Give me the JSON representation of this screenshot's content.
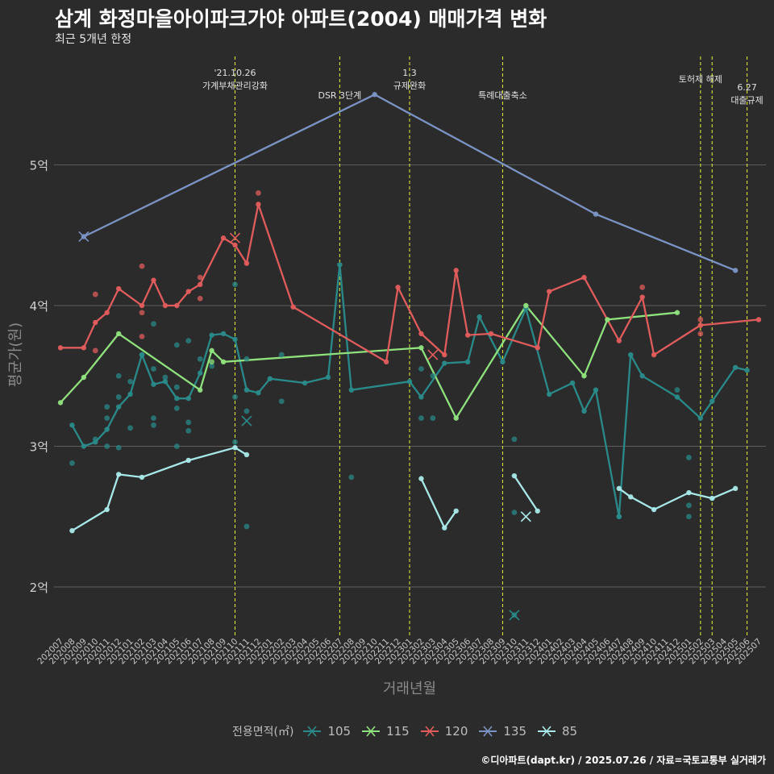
{
  "chart_data": {
    "type": "line",
    "title": "삼계 화정마을아이파크가야 아파트(2004) 매매가격 변화",
    "subtitle": "최근 5개년 한정",
    "xlabel": "거래년월",
    "ylabel": "평균가(원)",
    "y_unit": "억",
    "ylim": [
      1.62,
      5.5
    ],
    "y_ticks": [
      {
        "value": 2,
        "label": "2억"
      },
      {
        "value": 3,
        "label": "3억"
      },
      {
        "value": 4,
        "label": "4억"
      },
      {
        "value": 5,
        "label": "5억"
      }
    ],
    "grid": true,
    "legend_title": "전용면적(㎡)",
    "legend_position": "bottom",
    "x_categories": [
      "202007",
      "202008",
      "202009",
      "202010",
      "202011",
      "202012",
      "202101",
      "202102",
      "202103",
      "202104",
      "202105",
      "202106",
      "202107",
      "202108",
      "202109",
      "202110",
      "202111",
      "202112",
      "202201",
      "202202",
      "202203",
      "202204",
      "202205",
      "202206",
      "202207",
      "202208",
      "202209",
      "202210",
      "202211",
      "202212",
      "202301",
      "202302",
      "202303",
      "202304",
      "202305",
      "202306",
      "202307",
      "202308",
      "202309",
      "202310",
      "202311",
      "202312",
      "202401",
      "202402",
      "202403",
      "202404",
      "202405",
      "202406",
      "202407",
      "202408",
      "202409",
      "202410",
      "202411",
      "202412",
      "202501",
      "202502",
      "202503",
      "202504",
      "202505",
      "202506",
      "202507"
    ],
    "events": [
      {
        "x": "202110",
        "label": "'21.10.26\n가계부채관리강화"
      },
      {
        "x": "202207",
        "label": "DSR 3단계"
      },
      {
        "x": "202301",
        "label": "1.3\n규제완화"
      },
      {
        "x": "202309",
        "label": "특례대출축소"
      },
      {
        "x": "202502",
        "label": "토허제 해제"
      },
      {
        "x": "202503",
        "label": ""
      },
      {
        "x": "202506",
        "label": "6.27\n대출규제"
      }
    ],
    "series": [
      {
        "name": "105",
        "color": "#2a8a8a",
        "line": [
          [
            "202008",
            3.15
          ],
          [
            "202009",
            3.0
          ],
          [
            "202010",
            3.03
          ],
          [
            "202011",
            3.12
          ],
          [
            "202012",
            3.28
          ],
          [
            "202101",
            3.37
          ],
          [
            "202102",
            3.65
          ],
          [
            "202103",
            3.44
          ],
          [
            "202104",
            3.46
          ],
          [
            "202105",
            3.34
          ],
          [
            "202106",
            3.34
          ],
          [
            "202107",
            3.52
          ],
          [
            "202108",
            3.79
          ],
          [
            "202109",
            3.8
          ],
          [
            "202110",
            3.76
          ],
          [
            "202111",
            3.4
          ],
          [
            "202112",
            3.38
          ],
          [
            "202201",
            3.48
          ],
          [
            "202204",
            3.45
          ],
          [
            "202206",
            3.49
          ],
          [
            "202207",
            4.29
          ],
          [
            "202208",
            3.4
          ],
          [
            "202301",
            3.46
          ],
          [
            "202302",
            3.35
          ],
          [
            "202304",
            3.59
          ],
          [
            "202306",
            3.6
          ],
          [
            "202307",
            3.92
          ],
          [
            "202309",
            3.6
          ],
          [
            "202311",
            3.98
          ],
          [
            "202401",
            3.37
          ],
          [
            "202403",
            3.45
          ],
          [
            "202404",
            3.25
          ],
          [
            "202405",
            3.4
          ],
          [
            "202407",
            2.5
          ],
          [
            "202408",
            3.65
          ],
          [
            "202409",
            3.5
          ],
          [
            "202412",
            3.35
          ],
          [
            "202502",
            3.2
          ],
          [
            "202503",
            3.32
          ],
          [
            "202505",
            3.56
          ],
          [
            "202506",
            3.54
          ]
        ],
        "points": [
          [
            "202008",
            2.88
          ],
          [
            "202010",
            3.05
          ],
          [
            "202011",
            3.28
          ],
          [
            "202011",
            3.0
          ],
          [
            "202011",
            3.2
          ],
          [
            "202012",
            3.5
          ],
          [
            "202012",
            3.35
          ],
          [
            "202012",
            2.99
          ],
          [
            "202101",
            3.13
          ],
          [
            "202101",
            3.46
          ],
          [
            "202102",
            3.65
          ],
          [
            "202103",
            3.87
          ],
          [
            "202103",
            3.55
          ],
          [
            "202103",
            3.2
          ],
          [
            "202103",
            3.15
          ],
          [
            "202104",
            3.49
          ],
          [
            "202105",
            3.72
          ],
          [
            "202105",
            3.27
          ],
          [
            "202105",
            3.0
          ],
          [
            "202105",
            3.42
          ],
          [
            "202106",
            3.17
          ],
          [
            "202106",
            3.11
          ],
          [
            "202106",
            3.75
          ],
          [
            "202107",
            3.62
          ],
          [
            "202108",
            3.57
          ],
          [
            "202110",
            4.15
          ],
          [
            "202110",
            3.35
          ],
          [
            "202110",
            3.03
          ],
          [
            "202111",
            3.62
          ],
          [
            "202111",
            3.25
          ],
          [
            "202111",
            2.43
          ],
          [
            "202202",
            3.65
          ],
          [
            "202202",
            3.32
          ],
          [
            "202208",
            2.78
          ],
          [
            "202302",
            3.55
          ],
          [
            "202302",
            3.2
          ],
          [
            "202303",
            3.2
          ],
          [
            "202303",
            3.5
          ],
          [
            "202310",
            3.05
          ],
          [
            "202310",
            2.53
          ],
          [
            "202310",
            1.8
          ],
          [
            "202407",
            2.5
          ],
          [
            "202412",
            3.4
          ],
          [
            "202501",
            2.92
          ],
          [
            "202501",
            2.58
          ],
          [
            "202501",
            2.5
          ]
        ],
        "markers_x": [
          [
            "202111",
            3.18
          ],
          [
            "202310",
            1.8
          ]
        ]
      },
      {
        "name": "115",
        "color": "#8fe17d",
        "line": [
          [
            "202007",
            3.31
          ],
          [
            "202009",
            3.49
          ],
          [
            "202012",
            3.8
          ],
          [
            "202107",
            3.4
          ],
          [
            "202108",
            3.68
          ],
          [
            "202109",
            3.6
          ],
          [
            "202302",
            3.7
          ],
          [
            "202305",
            3.2
          ],
          [
            "202311",
            4.0
          ],
          [
            "202404",
            3.5
          ],
          [
            "202406",
            3.9
          ],
          [
            "202412",
            3.95
          ]
        ],
        "points": [
          [
            "202108",
            3.6
          ]
        ],
        "markers_x": []
      },
      {
        "name": "120",
        "color": "#e05c5c",
        "line": [
          [
            "202007",
            3.7
          ],
          [
            "202009",
            3.7
          ],
          [
            "202010",
            3.88
          ],
          [
            "202011",
            3.95
          ],
          [
            "202012",
            4.12
          ],
          [
            "202102",
            4.0
          ],
          [
            "202103",
            4.18
          ],
          [
            "202104",
            4.0
          ],
          [
            "202105",
            4.0
          ],
          [
            "202106",
            4.1
          ],
          [
            "202107",
            4.15
          ],
          [
            "202109",
            4.48
          ],
          [
            "202110",
            4.43
          ],
          [
            "202111",
            4.3
          ],
          [
            "202112",
            4.72
          ],
          [
            "202203",
            3.99
          ],
          [
            "202211",
            3.6
          ],
          [
            "202212",
            4.13
          ],
          [
            "202302",
            3.8
          ],
          [
            "202304",
            3.65
          ],
          [
            "202305",
            4.25
          ],
          [
            "202306",
            3.79
          ],
          [
            "202308",
            3.8
          ],
          [
            "202312",
            3.7
          ],
          [
            "202401",
            4.1
          ],
          [
            "202404",
            4.2
          ],
          [
            "202407",
            3.75
          ],
          [
            "202409",
            4.06
          ],
          [
            "202410",
            3.65
          ],
          [
            "202502",
            3.86
          ],
          [
            "202507",
            3.9
          ]
        ],
        "points": [
          [
            "202010",
            4.08
          ],
          [
            "202010",
            3.68
          ],
          [
            "202102",
            4.28
          ],
          [
            "202102",
            3.95
          ],
          [
            "202102",
            3.78
          ],
          [
            "202107",
            4.2
          ],
          [
            "202107",
            4.05
          ],
          [
            "202112",
            4.8
          ],
          [
            "202409",
            4.13
          ],
          [
            "202502",
            3.8
          ],
          [
            "202502",
            3.9
          ]
        ],
        "markers_x": [
          [
            "202110",
            4.48
          ],
          [
            "202303",
            3.65
          ]
        ]
      },
      {
        "name": "135",
        "color": "#7b93c4",
        "line": [
          [
            "202009",
            4.49
          ],
          [
            "202210",
            5.5
          ],
          [
            "202405",
            4.65
          ],
          [
            "202505",
            4.25
          ]
        ],
        "points": [],
        "markers_x": [
          [
            "202009",
            4.49
          ]
        ]
      },
      {
        "name": "85",
        "color": "#a8e8e8",
        "line": [
          [
            "202008",
            2.4
          ],
          [
            "202011",
            2.55
          ],
          [
            "202012",
            2.8
          ],
          [
            "202102",
            2.78
          ],
          [
            "202106",
            2.9
          ],
          [
            "202110",
            2.99
          ],
          [
            "202111",
            2.94
          ]
        ],
        "line2": [
          [
            "202302",
            2.77
          ],
          [
            "202304",
            2.42
          ],
          [
            "202305",
            2.54
          ]
        ],
        "line3": [
          [
            "202310",
            2.79
          ],
          [
            "202312",
            2.54
          ]
        ],
        "line4": [
          [
            "202407",
            2.7
          ],
          [
            "202408",
            2.64
          ],
          [
            "202410",
            2.55
          ],
          [
            "202501",
            2.67
          ],
          [
            "202503",
            2.63
          ],
          [
            "202505",
            2.7
          ]
        ],
        "points": [],
        "markers_x": [
          [
            "202311",
            2.5
          ]
        ]
      }
    ]
  },
  "legend": {
    "title": "전용면적(㎡)",
    "items": [
      "105",
      "115",
      "120",
      "135",
      "85"
    ]
  },
  "caption": "©디아파트(dapt.kr) / 2025.07.26 / 자료=국토교통부 실거래가"
}
